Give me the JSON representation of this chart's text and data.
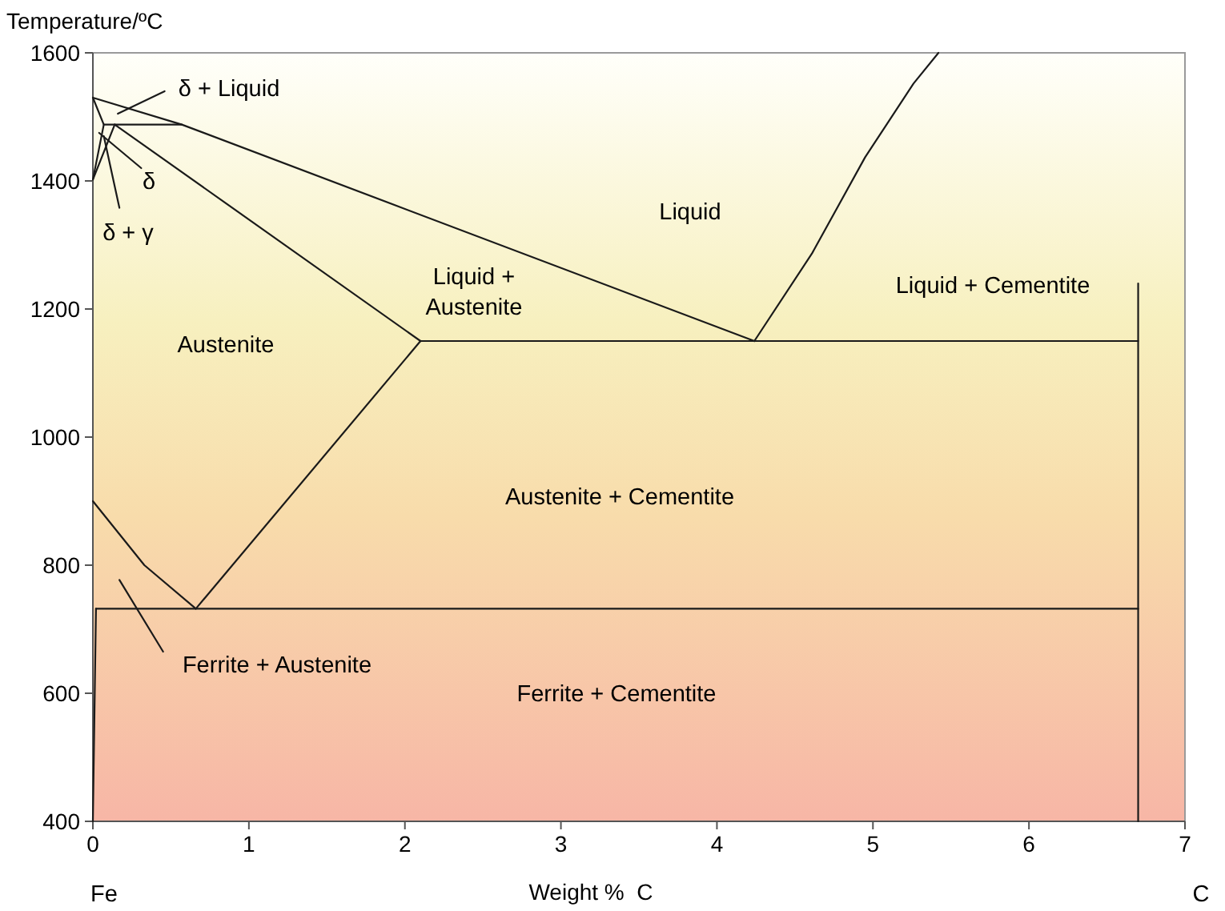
{
  "chart_data": {
    "type": "line",
    "xlabel": "Weight %  C",
    "ylabel": "Temperature/ºC",
    "xlim": [
      0,
      7
    ],
    "ylim": [
      400,
      1600
    ],
    "xticks": [
      0,
      1,
      2,
      3,
      4,
      5,
      6,
      7
    ],
    "yticks": [
      400,
      600,
      800,
      1000,
      1200,
      1400,
      1600
    ],
    "grid": false,
    "marker": "none",
    "line_style": "solid",
    "series": [
      {
        "color": "#1a1a1a",
        "x": [
          0,
          0.57,
          4.24
        ],
        "values": [
          1530,
          1488,
          1150
        ]
      },
      {
        "color": "#1a1a1a",
        "x": [
          4.24,
          4.61,
          4.95,
          5.26,
          5.42
        ],
        "values": [
          1150,
          1287,
          1437,
          1552,
          1600
        ]
      },
      {
        "color": "#1a1a1a",
        "x": [
          2.1,
          6.7
        ],
        "values": [
          1150,
          1150
        ]
      },
      {
        "color": "#1a1a1a",
        "x": [
          0.14,
          2.1
        ],
        "values": [
          1488,
          1150
        ]
      },
      {
        "color": "#1a1a1a",
        "x": [
          0.66,
          2.1
        ],
        "values": [
          732,
          1150
        ]
      },
      {
        "color": "#1a1a1a",
        "x": [
          0,
          0.33,
          0.66
        ],
        "values": [
          900,
          800,
          732
        ]
      },
      {
        "color": "#1a1a1a",
        "x": [
          0.02,
          6.7
        ],
        "values": [
          732,
          732
        ]
      },
      {
        "color": "#1a1a1a",
        "x": [
          6.7,
          6.7
        ],
        "values": [
          400,
          1240
        ]
      },
      {
        "color": "#1a1a1a",
        "x": [
          0,
          0.02
        ],
        "values": [
          400,
          732
        ]
      },
      {
        "color": "#1a1a1a",
        "x": [
          0.07,
          0.57
        ],
        "values": [
          1488,
          1488
        ]
      },
      {
        "color": "#1a1a1a",
        "x": [
          0,
          0.07,
          0
        ],
        "values": [
          1530,
          1488,
          1402
        ]
      },
      {
        "color": "#1a1a1a",
        "x": [
          0,
          0.14
        ],
        "values": [
          1402,
          1488
        ]
      },
      {
        "color": "#1a1a1a",
        "x": [
          0.46,
          0.16
        ],
        "values": [
          1540,
          1505
        ]
      },
      {
        "color": "#1a1a1a",
        "x": [
          0.31,
          0.04
        ],
        "values": [
          1420,
          1475
        ]
      },
      {
        "color": "#1a1a1a",
        "x": [
          0.17,
          0.07
        ],
        "values": [
          1358,
          1470
        ]
      },
      {
        "color": "#1a1a1a",
        "x": [
          0.45,
          0.17
        ],
        "values": [
          665,
          777
        ]
      }
    ],
    "annotations": [
      "δ + Liquid",
      "δ",
      "δ + γ",
      "Liquid",
      "Liquid +\nAustenite",
      "Liquid + Cementite",
      "Austenite",
      "Austenite + Cementite",
      "Ferrite + Cementite",
      "Ferrite + Austenite",
      "Fe",
      "C"
    ]
  }
}
